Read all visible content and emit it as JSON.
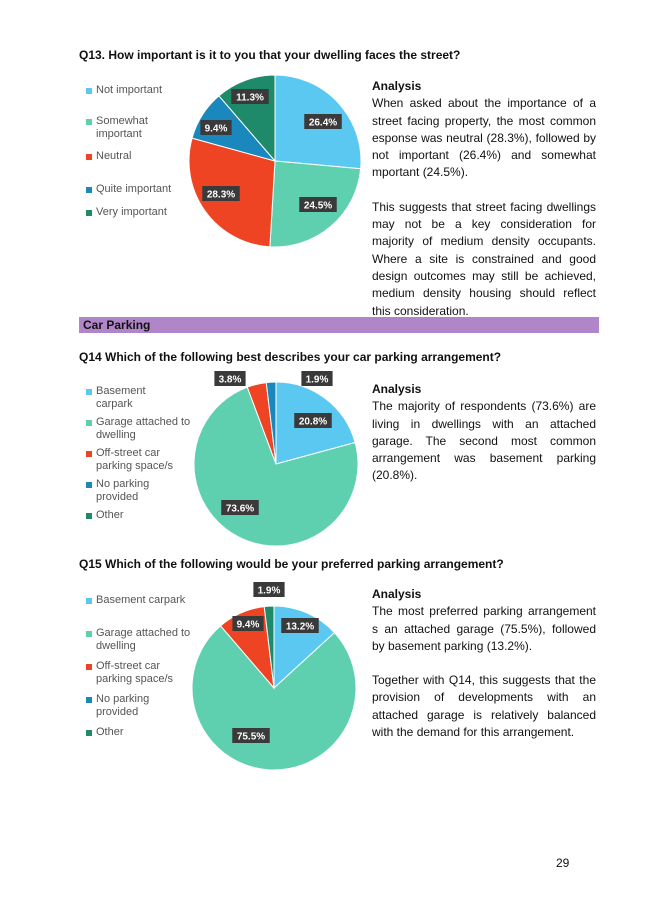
{
  "page_number": "29",
  "section_heading": "Car Parking",
  "questions": [
    {
      "title": "Q13. How important is it to you that your dwelling faces the street?",
      "analysis_heading": "Analysis",
      "analysis_paragraphs": [
        "When asked about the importance of a street facing property, the most common  esponse was neutral (28.3%), followed by not important (26.4%) and somewhat  mportant (24.5%).",
        "This suggests that street facing dwellings may not be a key consideration for majority of medium density occupants. Where a site is constrained and good design outcomes may still be achieved, medium density housing should reflect this consideration."
      ]
    },
    {
      "title": "Q14 Which of the following best describes your car parking arrangement?",
      "analysis_heading": "Analysis",
      "analysis_paragraphs": [
        "The majority of respondents (73.6%) are living in dwellings with an attached garage. The second most common arrangement was basement parking (20.8%)."
      ]
    },
    {
      "title": "Q15 Which of the following would be your preferred parking arrangement?",
      "analysis_heading": "Analysis",
      "analysis_paragraphs": [
        "The most preferred parking arrangement  s an attached garage (75.5%), followed by basement parking (13.2%).",
        "Together with Q14, this suggests that the provision of developments with an attached garage is relatively balanced with the demand for this arrangement."
      ]
    }
  ],
  "chart_data": [
    {
      "type": "pie",
      "title": "Q13. How important is it to you that your dwelling faces the street?",
      "legend_position": "left",
      "series": [
        {
          "name": "Not important",
          "value": 26.4,
          "label": "26.4%",
          "color": "#5bc8f2"
        },
        {
          "name": "Somewhat important",
          "value": 24.5,
          "label": "24.5%",
          "color": "#5ed0b0"
        },
        {
          "name": "Neutral",
          "value": 28.3,
          "label": "28.3%",
          "color": "#ef4423"
        },
        {
          "name": "Quite important",
          "value": 9.4,
          "label": "9.4%",
          "color": "#1a87bd"
        },
        {
          "name": "Very important",
          "value": 11.3,
          "label": "11.3%",
          "color": "#1f8a6a"
        }
      ]
    },
    {
      "type": "pie",
      "title": "Q14 Which of the following best describes your car parking arrangement?",
      "legend_position": "left",
      "series": [
        {
          "name": "Basement carpark",
          "value": 20.8,
          "label": "20.8%",
          "color": "#5bc8f2"
        },
        {
          "name": "Garage attached to dwelling",
          "value": 73.6,
          "label": "73.6%",
          "color": "#5ed0b0"
        },
        {
          "name": "Off-street car parking space/s",
          "value": 3.8,
          "label": "3.8%",
          "color": "#ef4423"
        },
        {
          "name": "No parking provided",
          "value": 1.9,
          "label": "1.9%",
          "color": "#1a87bd"
        },
        {
          "name": "Other",
          "value": 0,
          "label": "",
          "color": "#1f8a6a"
        }
      ]
    },
    {
      "type": "pie",
      "title": "Q15 Which of the following would be your preferred parking arrangement?",
      "legend_position": "left",
      "series": [
        {
          "name": "Basement carpark",
          "value": 13.2,
          "label": "13.2%",
          "color": "#5bc8f2"
        },
        {
          "name": "Garage attached to dwelling",
          "value": 75.5,
          "label": "75.5%",
          "color": "#5ed0b0"
        },
        {
          "name": "Off-street car parking space/s",
          "value": 9.4,
          "label": "9.4%",
          "color": "#ef4423"
        },
        {
          "name": "No parking provided",
          "value": 0,
          "label": "",
          "color": "#1a87bd"
        },
        {
          "name": "Other",
          "value": 1.9,
          "label": "1.9%",
          "color": "#1f8a6a"
        }
      ]
    }
  ],
  "legends": [
    [
      "Not important",
      "Somewhat important",
      "Neutral",
      "Quite important",
      "Very important"
    ],
    [
      "Basement carpark",
      "Garage attached to dwelling",
      "Off-street car parking space/s",
      "No parking provided",
      "Other"
    ],
    [
      "Basement carpark",
      "Garage attached to dwelling",
      "Off-street car parking space/s",
      "No parking provided",
      "Other"
    ]
  ]
}
